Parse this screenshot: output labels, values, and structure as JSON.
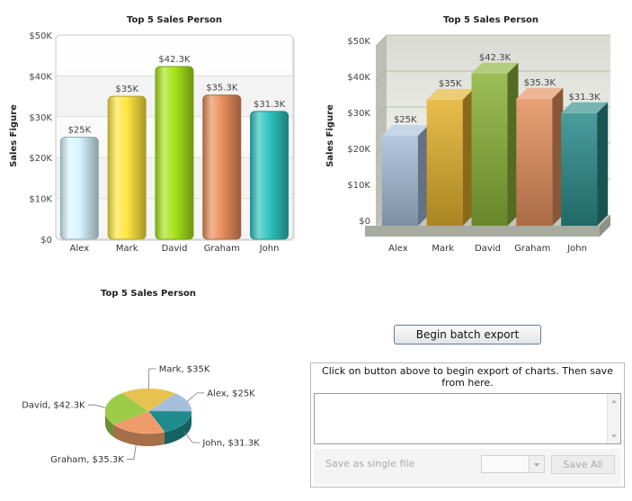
{
  "chart_data": [
    {
      "type": "bar",
      "style": "2d-glass",
      "title": "Top 5 Sales Person",
      "ylabel": "Sales Figure",
      "xlabel": "",
      "categories": [
        "Alex",
        "Mark",
        "David",
        "Graham",
        "John"
      ],
      "values": [
        25000,
        35000,
        42300,
        35300,
        31300
      ],
      "data_labels": [
        "$25K",
        "$35K",
        "$42.3K",
        "$35.3K",
        "$31.3K"
      ],
      "ylim": [
        0,
        50000
      ],
      "yticks": [
        0,
        10000,
        20000,
        30000,
        40000,
        50000
      ],
      "ytick_labels": [
        "$0",
        "$10K",
        "$20K",
        "$30K",
        "$40K",
        "$50K"
      ],
      "grid": true,
      "colors": [
        "#d8f4ff",
        "#ffe640",
        "#a6e51b",
        "#e98f5c",
        "#2fc4c0"
      ]
    },
    {
      "type": "bar",
      "style": "3d",
      "title": "Top 5 Sales Person",
      "ylabel": "Sales Figure",
      "xlabel": "",
      "categories": [
        "Alex",
        "Mark",
        "David",
        "Graham",
        "John"
      ],
      "values": [
        25000,
        35000,
        42300,
        35300,
        31300
      ],
      "data_labels": [
        "$25K",
        "$35K",
        "$42.3K",
        "$35.3K",
        "$31.3K"
      ],
      "ylim": [
        0,
        50000
      ],
      "yticks": [
        0,
        10000,
        20000,
        30000,
        40000,
        50000
      ],
      "ytick_labels": [
        "$0",
        "$10K",
        "$20K",
        "$30K",
        "$40K",
        "$50K"
      ],
      "grid": true,
      "colors": [
        "#a7bedb",
        "#e4b12c",
        "#8ab238",
        "#e4905d",
        "#2a8c8a"
      ]
    },
    {
      "type": "pie",
      "style": "3d",
      "title": "Top 5 Sales Person",
      "categories": [
        "Alex",
        "John",
        "Graham",
        "David",
        "Mark"
      ],
      "values": [
        25000,
        31300,
        35300,
        42300,
        35000
      ],
      "slice_labels": [
        "Alex, $25K",
        "John, $31.3K",
        "Graham, $35.3K",
        "David, $42.3K",
        "Mark, $35K"
      ],
      "colors": [
        "#a7bedb",
        "#1e8c8c",
        "#ee9d6a",
        "#9ccb48",
        "#e8c24f"
      ]
    }
  ],
  "batch_export": {
    "button_label": "Begin batch export",
    "message": "Click on button above to begin export of charts. Then save from here.",
    "single_file_label": "Save as single file",
    "save_all_label": "Save All",
    "format_value": ""
  }
}
